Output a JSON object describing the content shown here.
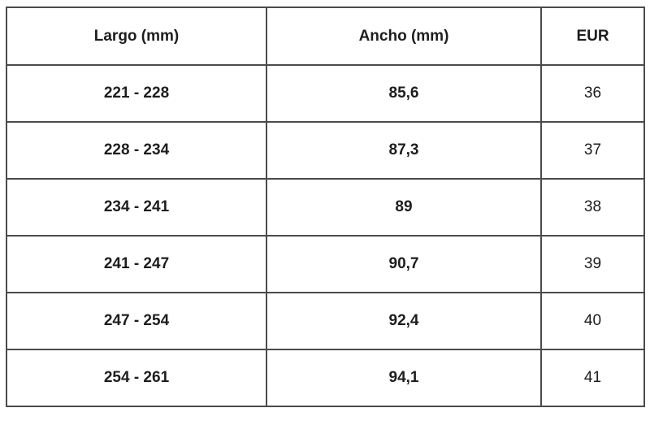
{
  "table": {
    "headers": [
      "Largo (mm)",
      "Ancho (mm)",
      "EUR"
    ],
    "rows": [
      {
        "largo": "221 - 228",
        "ancho": "85,6",
        "eur": "36"
      },
      {
        "largo": "228 - 234",
        "ancho": "87,3",
        "eur": "37"
      },
      {
        "largo": "234 - 241",
        "ancho": "89",
        "eur": "38"
      },
      {
        "largo": "241 - 247",
        "ancho": "90,7",
        "eur": "39"
      },
      {
        "largo": "247 - 254",
        "ancho": "92,4",
        "eur": "40"
      },
      {
        "largo": "254 - 261",
        "ancho": "94,1",
        "eur": "41"
      }
    ]
  },
  "colors": {
    "border": "#4b4b4b",
    "text": "#1d1d1d",
    "background": "#ffffff"
  }
}
